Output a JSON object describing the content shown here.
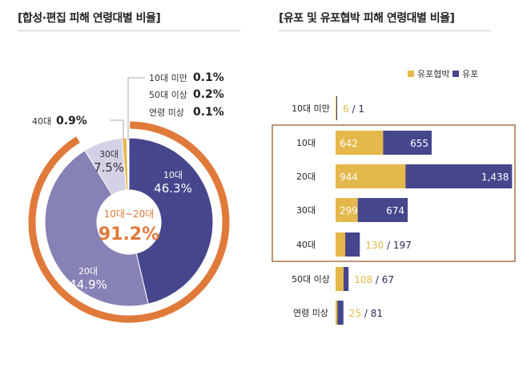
{
  "chart_data": [
    {
      "type": "pie",
      "variant": "donut",
      "title": "[합성·편집 피해 연령대별 비율]",
      "center_label": "10대~20대",
      "center_value": "91.2%",
      "highlight_ring": {
        "covers": [
          "10대",
          "20대"
        ],
        "percent": 91.2,
        "color": "#e07a3a"
      },
      "slices": [
        {
          "label": "10대",
          "value": 46.3,
          "display": "46.3%",
          "color": "#46468c"
        },
        {
          "label": "20대",
          "value": 44.9,
          "display": "44.9%",
          "color": "#8782b6"
        },
        {
          "label": "30대",
          "value": 7.5,
          "display": "7.5%",
          "color": "#d3d1e5"
        },
        {
          "label": "40대",
          "value": 0.9,
          "display": "0.9%",
          "color": "#e4b84a"
        },
        {
          "label": "연령 미상",
          "value": 0.1,
          "display": "0.1%",
          "color": "#e4b84a"
        },
        {
          "label": "50대 이상",
          "value": 0.2,
          "display": "0.2%",
          "color": "#e4b84a"
        },
        {
          "label": "10대 미만",
          "value": 0.1,
          "display": "0.1%",
          "color": "#e4b84a"
        }
      ]
    },
    {
      "type": "bar",
      "orientation": "horizontal",
      "stacked": true,
      "title": "[유포 및 유포협박 피해 연령대별 비율]",
      "legend_placement": "top-right",
      "categories": [
        "10대 미만",
        "10대",
        "20대",
        "30대",
        "40대",
        "50대 이상",
        "연령 미상"
      ],
      "highlight_box": {
        "covers": [
          "10대",
          "20대",
          "30대",
          "40대"
        ],
        "color": "#a8764a"
      },
      "series": [
        {
          "name": "유포협박",
          "color": "#e4b84a",
          "values": [
            6,
            642,
            944,
            299,
            130,
            108,
            25
          ]
        },
        {
          "name": "유포",
          "color": "#46468c",
          "values": [
            1,
            655,
            1438,
            674,
            197,
            67,
            81
          ]
        }
      ],
      "value_labels": [
        [
          "6",
          "1"
        ],
        [
          "642",
          "655"
        ],
        [
          "944",
          "1,438"
        ],
        [
          "299",
          "674"
        ],
        [
          "130",
          "197"
        ],
        [
          "108",
          "67"
        ],
        [
          "25",
          "81"
        ]
      ]
    }
  ]
}
